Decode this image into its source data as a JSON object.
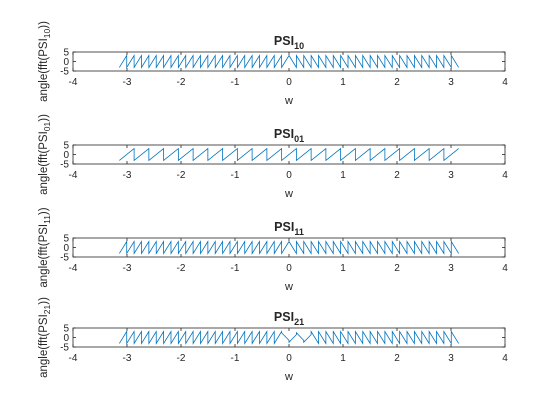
{
  "figure": {
    "background": "#ffffff",
    "axes_color": "#262626",
    "line_color": "#0072BD"
  },
  "chart_data": [
    {
      "type": "line",
      "title": {
        "main": "PSI",
        "sub": "10"
      },
      "ylabel": {
        "pre": "angle(fft(PSI",
        "sub": "10",
        "post": "))"
      },
      "xlabel": "w",
      "xlim": [
        -4,
        4
      ],
      "ylim": [
        -5,
        5
      ],
      "xticks": [
        "-4",
        "-3",
        "-2",
        "-1",
        "0",
        "1",
        "2",
        "3",
        "4"
      ],
      "yticks": [
        "-5",
        "0",
        "5"
      ],
      "series": [
        {
          "x_range": [
            -3.1416,
            3.1416
          ],
          "amplitude": 3.14,
          "wraps": 46,
          "phase_flip_at": 0,
          "style": "sawtooth"
        }
      ]
    },
    {
      "type": "line",
      "title": {
        "main": "PSI",
        "sub": "01"
      },
      "ylabel": {
        "pre": "angle(fft(PSI",
        "sub": "01",
        "post": "))"
      },
      "xlabel": "w",
      "xlim": [
        -4,
        4
      ],
      "ylim": [
        -5,
        5
      ],
      "xticks": [
        "-4",
        "-3",
        "-2",
        "-1",
        "0",
        "1",
        "2",
        "3",
        "4"
      ],
      "yticks": [
        "-5",
        "0",
        "5"
      ],
      "series": [
        {
          "x_range": [
            -3.1416,
            3.1416
          ],
          "amplitude": 3.14,
          "wraps": 23,
          "phase_flip_at": null,
          "style": "sawtooth"
        }
      ]
    },
    {
      "type": "line",
      "title": {
        "main": "PSI",
        "sub": "11"
      },
      "ylabel": {
        "pre": "angle(fft(PSI",
        "sub": "11",
        "post": "))"
      },
      "xlabel": "w",
      "xlim": [
        -4,
        4
      ],
      "ylim": [
        -5,
        5
      ],
      "xticks": [
        "-4",
        "-3",
        "-2",
        "-1",
        "0",
        "1",
        "2",
        "3",
        "4"
      ],
      "yticks": [
        "-5",
        "0",
        "5"
      ],
      "series": [
        {
          "x_range": [
            -3.1416,
            3.1416
          ],
          "amplitude": 3.14,
          "wraps": 46,
          "phase_flip_at": 0,
          "style": "sawtooth"
        }
      ]
    },
    {
      "type": "line",
      "title": {
        "main": "PSI",
        "sub": "21"
      },
      "ylabel": {
        "pre": "angle(fft(PSI",
        "sub": "21",
        "post": "))"
      },
      "xlabel": "w",
      "xlim": [
        -4,
        4
      ],
      "ylim": [
        -5,
        5
      ],
      "xticks": [
        "-4",
        "-3",
        "-2",
        "-1",
        "0",
        "1",
        "2",
        "3",
        "4"
      ],
      "yticks": [
        "-5",
        "0",
        "5"
      ],
      "series": [
        {
          "x_range": [
            -3.1416,
            3.1416
          ],
          "amplitude": 3.14,
          "wraps": 46,
          "phase_flip_at": 0,
          "style": "sawtooth-glitch"
        }
      ]
    }
  ]
}
